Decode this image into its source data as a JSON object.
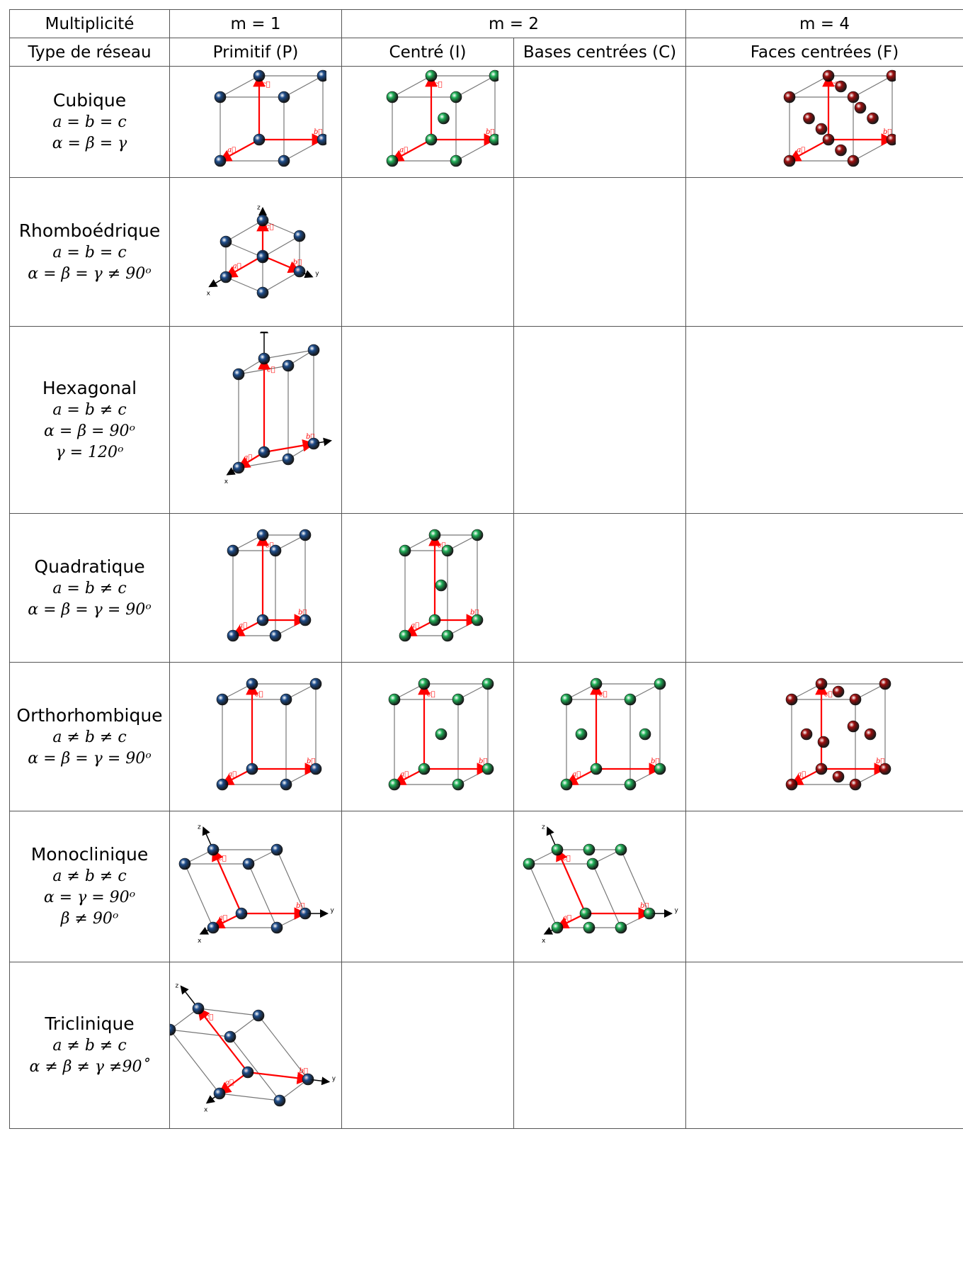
{
  "header": {
    "row1": {
      "label": "Multiplicité",
      "m1": "m = 1",
      "m2": "m = 2",
      "m4": "m = 4"
    },
    "row2": {
      "label": "Type de réseau",
      "p": "Primitif (P)",
      "i": "Centré (I)",
      "c": "Bases centrées (C)",
      "f": "Faces centrées (F)"
    }
  },
  "rows": [
    {
      "name": "Cubique",
      "rels": [
        "a = b = c",
        "α = β = γ"
      ]
    },
    {
      "name": "Rhomboédrique",
      "rels": [
        "a = b = c",
        "α = β = γ ≠ 90ᵒ"
      ]
    },
    {
      "name": "Hexagonal",
      "rels": [
        "a = b ≠ c",
        "α = β = 90ᵒ",
        "γ = 120ᵒ"
      ]
    },
    {
      "name": "Quadratique",
      "rels": [
        "a = b ≠ c",
        "α = β = γ = 90ᵒ"
      ]
    },
    {
      "name": "Orthorhombique",
      "rels": [
        "a ≠ b ≠ c",
        "α = β = γ = 90ᵒ"
      ]
    },
    {
      "name": "Monoclinique",
      "rels": [
        "a ≠ b ≠ c",
        "α = γ = 90ᵒ",
        "β ≠ 90ᵒ"
      ]
    },
    {
      "name": "Triclinique",
      "rels": [
        "a ≠ b ≠ c",
        "α ≠ β ≠ γ ≠90˚"
      ]
    }
  ],
  "vectors": {
    "a": "a⃗",
    "b": "b⃗",
    "c": "c⃗"
  },
  "axes": {
    "x": "x",
    "y": "y",
    "z": "z"
  },
  "colors": {
    "primitive": "#1f4e8c",
    "centered": "#22b35a",
    "faces": "#a01010",
    "vector": "#ff0000"
  }
}
